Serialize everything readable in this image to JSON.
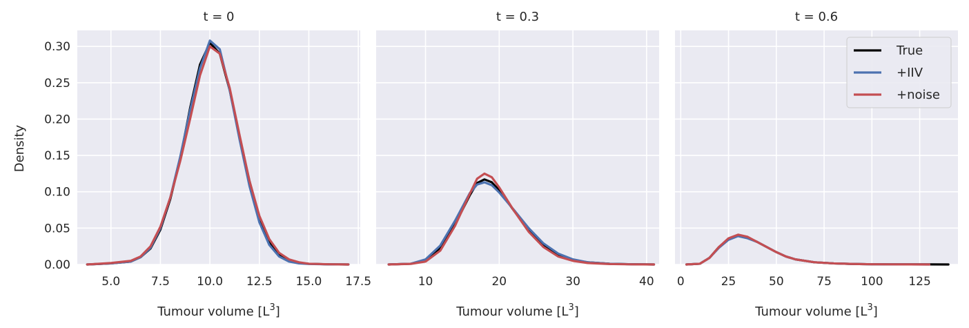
{
  "chart_data": {
    "type": "line",
    "ylabel": "Density",
    "yticks": [
      "0.00",
      "0.05",
      "0.10",
      "0.15",
      "0.20",
      "0.25",
      "0.30"
    ],
    "ylim": [
      0,
      0.322
    ],
    "legend": {
      "placement": "top-right of last panel",
      "entries": [
        {
          "name": "True",
          "color": "#000000"
        },
        {
          "name": "+IIV",
          "color": "#4c72b0"
        },
        {
          "name": "+noise",
          "color": "#c44e52"
        }
      ]
    },
    "panels": [
      {
        "title": "t = 0",
        "xlabel_main": "Tumour volume [L",
        "xlabel_sup": "3",
        "xlabel_end": "]",
        "xlim": [
          3.3,
          17.6
        ],
        "xticks": [
          5.0,
          7.5,
          10.0,
          12.5,
          15.0,
          17.5
        ],
        "xtick_labels": [
          "5.0",
          "7.5",
          "10.0",
          "12.5",
          "15.0",
          "17.5"
        ],
        "series": [
          {
            "name": "True",
            "color": "#000000",
            "x": [
              3.8,
              5.0,
              6.0,
              6.5,
              7.0,
              7.5,
              8.0,
              8.5,
              9.0,
              9.5,
              10.0,
              10.5,
              11.0,
              11.5,
              12.0,
              12.5,
              13.0,
              13.5,
              14.0,
              14.5,
              15.0,
              16.0,
              17.0
            ],
            "y": [
              0.0,
              0.0015,
              0.004,
              0.01,
              0.022,
              0.048,
              0.09,
              0.145,
              0.215,
              0.275,
              0.305,
              0.29,
              0.24,
              0.175,
              0.115,
              0.065,
              0.032,
              0.013,
              0.005,
              0.002,
              0.001,
              0.0002,
              0.0
            ]
          },
          {
            "name": "+IIV",
            "color": "#4c72b0",
            "x": [
              3.8,
              5.0,
              6.0,
              6.5,
              7.0,
              7.5,
              8.0,
              8.5,
              9.0,
              9.5,
              10.0,
              10.5,
              11.0,
              11.5,
              12.0,
              12.5,
              13.0,
              13.5,
              14.0,
              14.5,
              15.0,
              16.0,
              17.0
            ],
            "y": [
              0.0,
              0.0015,
              0.004,
              0.01,
              0.023,
              0.05,
              0.092,
              0.148,
              0.212,
              0.27,
              0.308,
              0.296,
              0.24,
              0.172,
              0.108,
              0.058,
              0.027,
              0.011,
              0.004,
              0.0015,
              0.0007,
              0.0002,
              0.0
            ]
          },
          {
            "name": "+noise",
            "color": "#c44e52",
            "x": [
              3.8,
              5.0,
              6.0,
              6.5,
              7.0,
              7.5,
              8.0,
              8.5,
              9.0,
              9.5,
              10.0,
              10.5,
              11.0,
              11.5,
              12.0,
              12.5,
              13.0,
              13.5,
              14.0,
              14.5,
              15.0,
              16.0,
              17.0
            ],
            "y": [
              0.0,
              0.002,
              0.005,
              0.011,
              0.025,
              0.052,
              0.092,
              0.142,
              0.2,
              0.26,
              0.3,
              0.29,
              0.243,
              0.178,
              0.115,
              0.067,
              0.035,
              0.016,
              0.007,
              0.003,
              0.001,
              0.0003,
              0.0
            ]
          }
        ]
      },
      {
        "title": "t = 0.3",
        "xlabel_main": "Tumour volume [L",
        "xlabel_sup": "3",
        "xlabel_end": "]",
        "xlim": [
          3.3,
          41.7
        ],
        "xticks": [
          10,
          20,
          30,
          40
        ],
        "xtick_labels": [
          "10",
          "20",
          "30",
          "40"
        ],
        "series": [
          {
            "name": "True",
            "color": "#000000",
            "x": [
              5,
              8,
              10,
              12,
              14,
              16,
              17,
              18,
              19,
              20,
              22,
              24,
              26,
              28,
              30,
              32,
              35,
              38,
              41
            ],
            "y": [
              0.0,
              0.001,
              0.005,
              0.022,
              0.055,
              0.095,
              0.112,
              0.117,
              0.113,
              0.102,
              0.074,
              0.047,
              0.026,
              0.013,
              0.006,
              0.003,
              0.001,
              0.0003,
              0.0
            ]
          },
          {
            "name": "+IIV",
            "color": "#4c72b0",
            "x": [
              5,
              8,
              10,
              12,
              14,
              16,
              17,
              18,
              19,
              20,
              22,
              24,
              26,
              28,
              30,
              32,
              35,
              38,
              41
            ],
            "y": [
              0.0,
              0.001,
              0.007,
              0.026,
              0.06,
              0.098,
              0.11,
              0.113,
              0.109,
              0.099,
              0.075,
              0.05,
              0.029,
              0.015,
              0.007,
              0.003,
              0.001,
              0.0003,
              0.0
            ]
          },
          {
            "name": "+noise",
            "color": "#c44e52",
            "x": [
              5,
              8,
              10,
              12,
              14,
              16,
              17,
              18,
              19,
              20,
              22,
              24,
              26,
              28,
              30,
              32,
              35,
              38,
              41
            ],
            "y": [
              0.0,
              0.0008,
              0.004,
              0.019,
              0.053,
              0.097,
              0.118,
              0.125,
              0.12,
              0.106,
              0.074,
              0.045,
              0.024,
              0.011,
              0.005,
              0.002,
              0.0006,
              0.0002,
              0.0
            ]
          }
        ]
      },
      {
        "title": "t = 0.6",
        "xlabel_main": "Tumour volume [L",
        "xlabel_sup": "3",
        "xlabel_end": "]",
        "xlim": [
          -3,
          145
        ],
        "xticks": [
          0,
          25,
          50,
          75,
          100,
          125
        ],
        "xtick_labels": [
          "0",
          "25",
          "50",
          "75",
          "100",
          "125"
        ],
        "series": [
          {
            "name": "True",
            "color": "#000000",
            "x": [
              3,
              10,
              15,
              20,
              25,
              30,
              35,
              40,
              45,
              50,
              55,
              60,
              70,
              80,
              90,
              100,
              110,
              120,
              130,
              140
            ],
            "y": [
              0.0,
              0.001,
              0.009,
              0.024,
              0.035,
              0.04,
              0.037,
              0.031,
              0.024,
              0.017,
              0.011,
              0.007,
              0.003,
              0.0015,
              0.0007,
              0.0003,
              0.0002,
              0.0001,
              0.0001,
              0.0
            ]
          },
          {
            "name": "+IIV",
            "color": "#4c72b0",
            "x": [
              3,
              10,
              15,
              20,
              25,
              30,
              35,
              40,
              45,
              50,
              55,
              60,
              70,
              80,
              90,
              100,
              110,
              120,
              130
            ],
            "y": [
              0.0,
              0.001,
              0.009,
              0.023,
              0.034,
              0.039,
              0.036,
              0.031,
              0.024,
              0.017,
              0.011,
              0.007,
              0.003,
              0.0015,
              0.0007,
              0.0003,
              0.0002,
              0.0001,
              0.0
            ]
          },
          {
            "name": "+noise",
            "color": "#c44e52",
            "x": [
              3,
              10,
              15,
              20,
              25,
              30,
              35,
              40,
              45,
              50,
              55,
              60,
              70,
              80,
              90,
              100,
              110,
              120,
              130
            ],
            "y": [
              0.0,
              0.001,
              0.009,
              0.024,
              0.036,
              0.041,
              0.038,
              0.031,
              0.024,
              0.017,
              0.011,
              0.007,
              0.003,
              0.0015,
              0.0007,
              0.0003,
              0.0002,
              0.0001,
              0.0
            ]
          }
        ]
      }
    ]
  }
}
